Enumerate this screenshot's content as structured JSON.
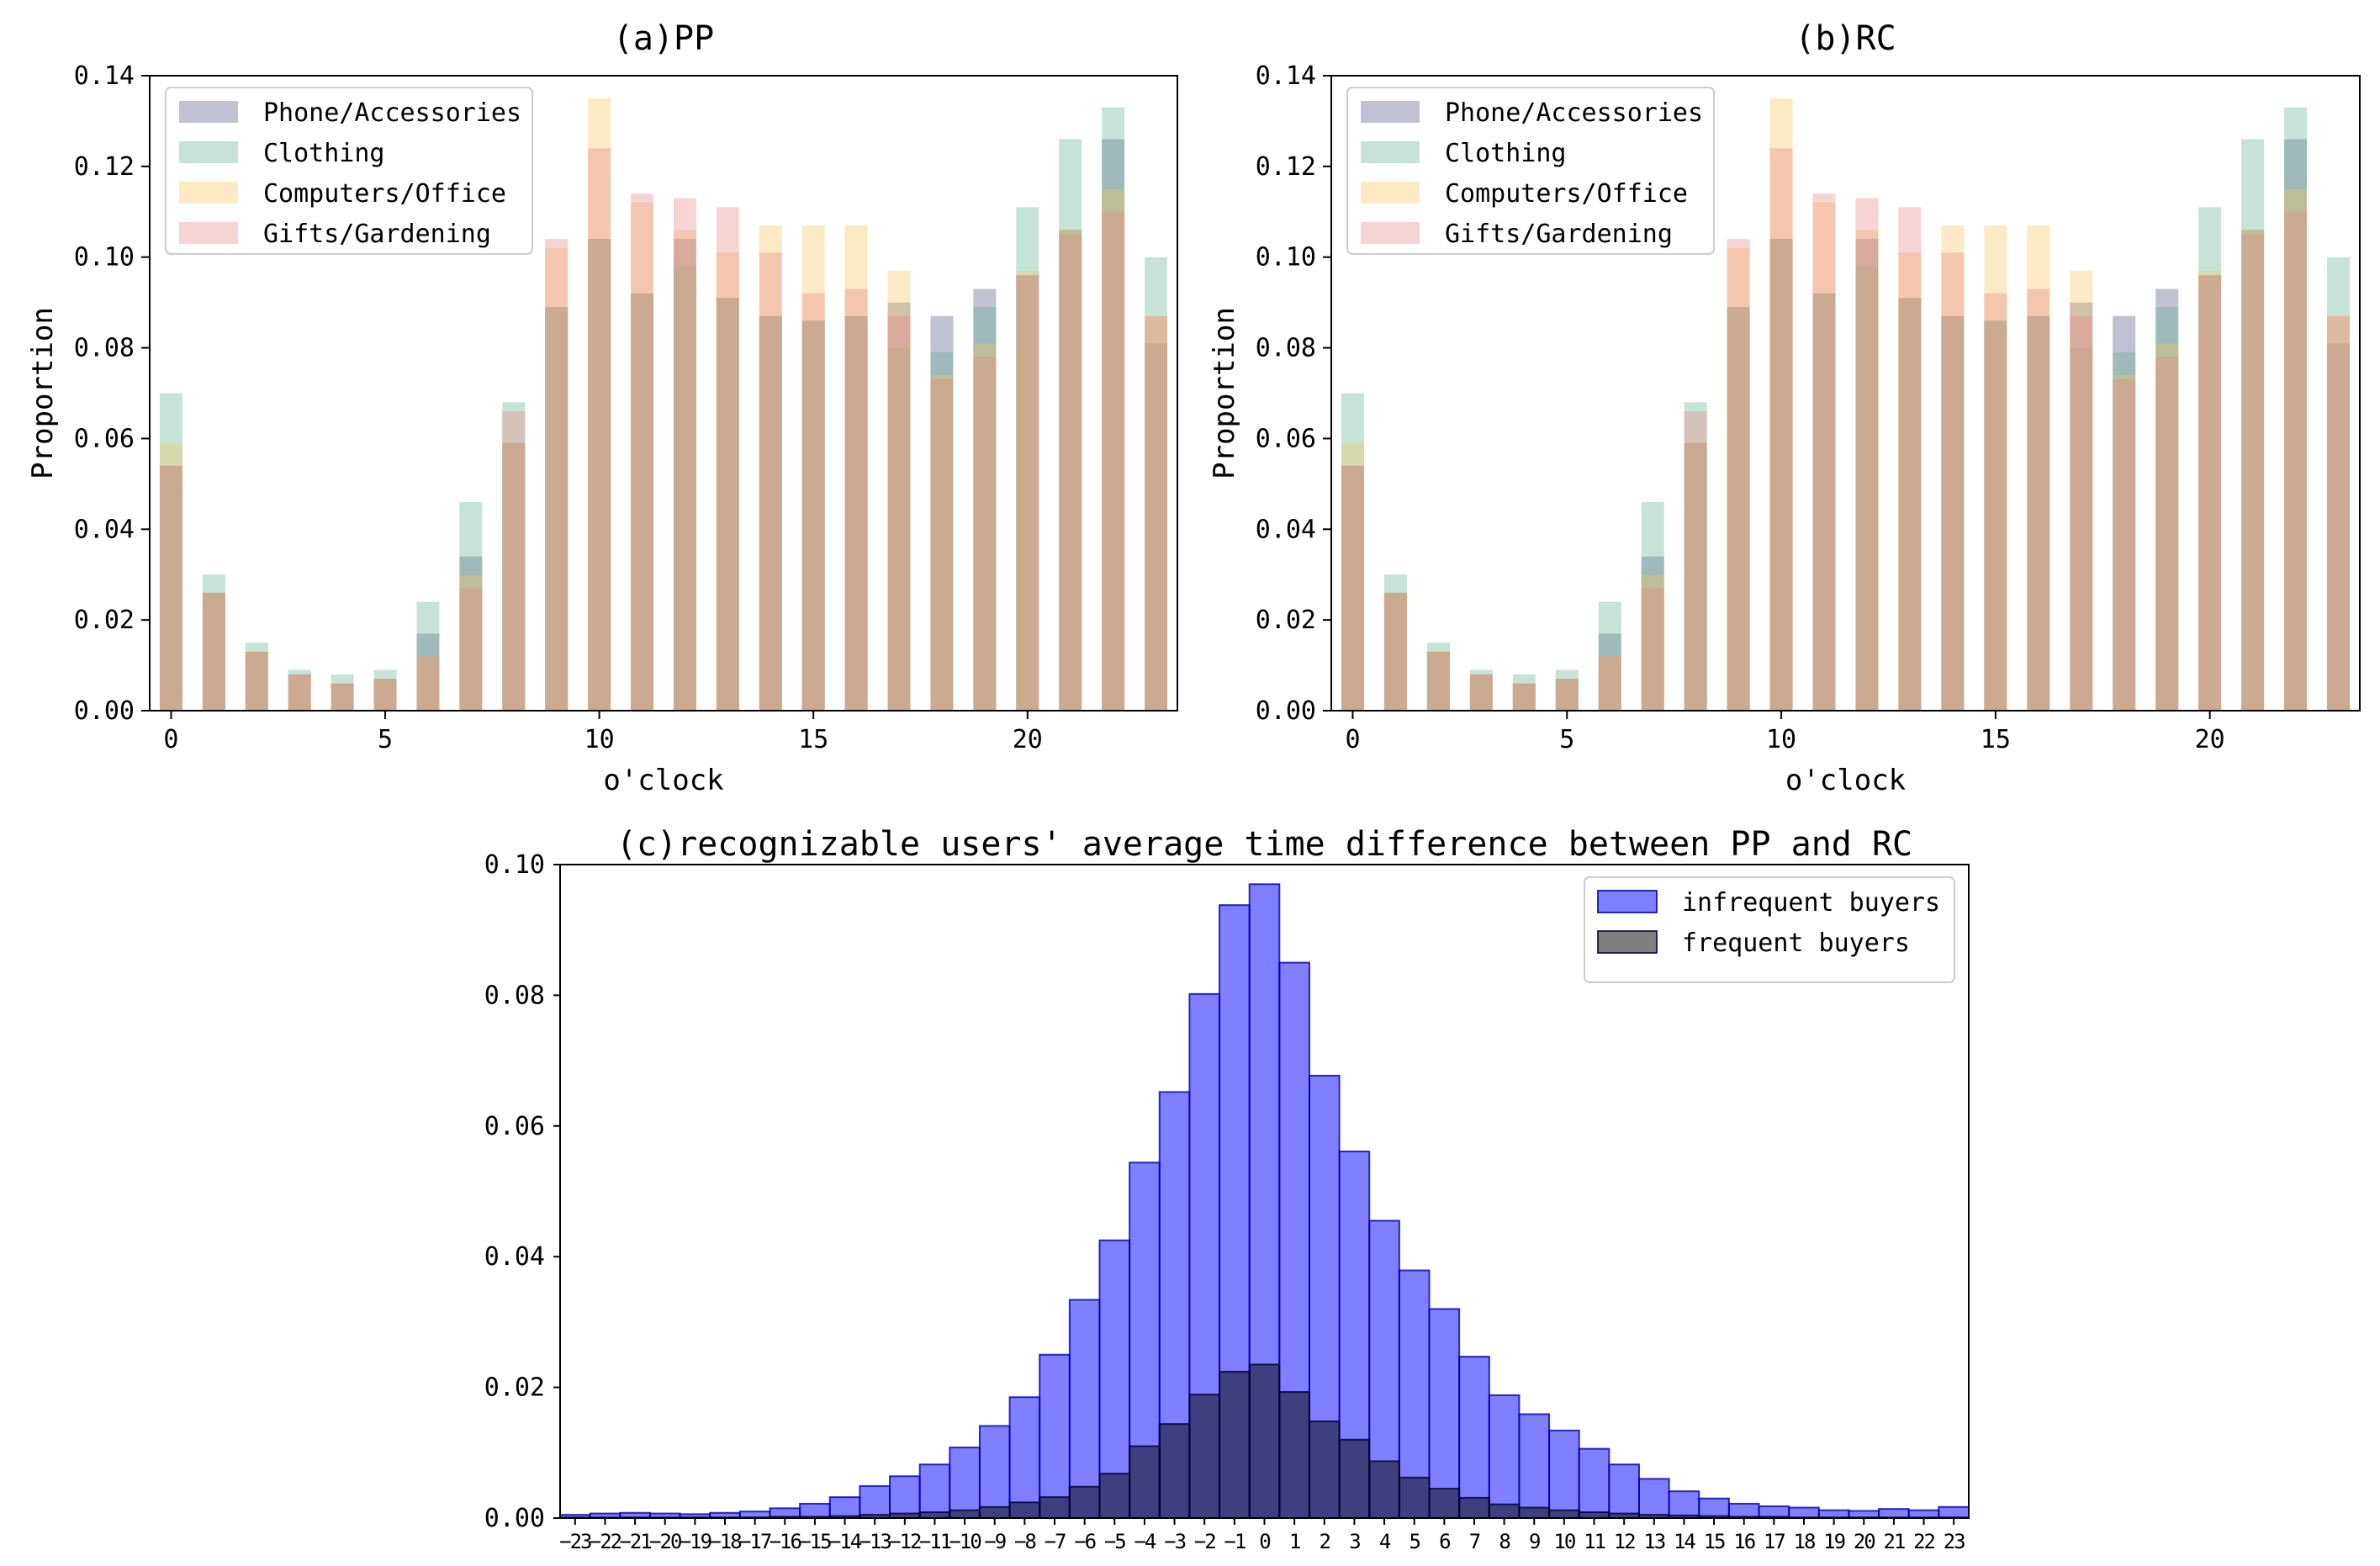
{
  "chart_data": [
    {
      "id": "a",
      "type": "bar",
      "title": "(a)PP",
      "xlabel": "o'clock",
      "ylabel": "Proportion",
      "xlim": [
        -0.5,
        23.5
      ],
      "ylim": [
        0,
        0.14
      ],
      "xticks": [
        0,
        5,
        10,
        15,
        20
      ],
      "yticks": [
        "0.00",
        "0.02",
        "0.04",
        "0.06",
        "0.08",
        "0.10",
        "0.12",
        "0.14"
      ],
      "legend_position": "top-left",
      "x": [
        0,
        1,
        2,
        3,
        4,
        5,
        6,
        7,
        8,
        9,
        10,
        11,
        12,
        13,
        14,
        15,
        16,
        17,
        18,
        19,
        20,
        21,
        22,
        23
      ],
      "series": [
        {
          "name": "Phone/Accessories",
          "color": "#4b4d7e",
          "values": [
            0.054,
            0.026,
            0.013,
            0.008,
            0.006,
            0.007,
            0.017,
            0.034,
            0.059,
            0.089,
            0.104,
            0.092,
            0.104,
            0.091,
            0.087,
            0.086,
            0.087,
            0.09,
            0.087,
            0.093,
            0.096,
            0.106,
            0.126,
            0.081
          ]
        },
        {
          "name": "Clothing",
          "color": "#5faf8e",
          "values": [
            0.07,
            0.03,
            0.015,
            0.009,
            0.008,
            0.009,
            0.024,
            0.046,
            0.068,
            0.089,
            0.104,
            0.092,
            0.098,
            0.091,
            0.087,
            0.086,
            0.087,
            0.08,
            0.079,
            0.089,
            0.111,
            0.126,
            0.133,
            0.1
          ]
        },
        {
          "name": "Computers/Office",
          "color": "#f6c35a",
          "values": [
            0.059,
            0.026,
            0.013,
            0.008,
            0.006,
            0.007,
            0.012,
            0.03,
            0.059,
            0.102,
            0.135,
            0.112,
            0.106,
            0.101,
            0.107,
            0.107,
            0.107,
            0.097,
            0.074,
            0.081,
            0.097,
            0.106,
            0.115,
            0.087
          ]
        },
        {
          "name": "Gifts/Gardening",
          "color": "#e88585",
          "values": [
            0.054,
            0.026,
            0.013,
            0.008,
            0.006,
            0.007,
            0.012,
            0.027,
            0.066,
            0.104,
            0.124,
            0.114,
            0.113,
            0.111,
            0.101,
            0.092,
            0.093,
            0.087,
            0.073,
            0.078,
            0.096,
            0.105,
            0.11,
            0.087
          ]
        }
      ]
    },
    {
      "id": "b",
      "type": "bar",
      "title": "(b)RC",
      "xlabel": "o'clock",
      "ylabel": "Proportion",
      "xlim": [
        -0.5,
        23.5
      ],
      "ylim": [
        0,
        0.14
      ],
      "xticks": [
        0,
        5,
        10,
        15,
        20
      ],
      "yticks": [
        "0.00",
        "0.02",
        "0.04",
        "0.06",
        "0.08",
        "0.10",
        "0.12",
        "0.14"
      ],
      "legend_position": "top-left",
      "x": [
        0,
        1,
        2,
        3,
        4,
        5,
        6,
        7,
        8,
        9,
        10,
        11,
        12,
        13,
        14,
        15,
        16,
        17,
        18,
        19,
        20,
        21,
        22,
        23
      ],
      "series": [
        {
          "name": "Phone/Accessories",
          "color": "#4b4d7e",
          "values": [
            0.054,
            0.026,
            0.013,
            0.008,
            0.006,
            0.007,
            0.017,
            0.034,
            0.059,
            0.089,
            0.104,
            0.092,
            0.104,
            0.091,
            0.087,
            0.086,
            0.087,
            0.09,
            0.087,
            0.093,
            0.096,
            0.106,
            0.126,
            0.081
          ]
        },
        {
          "name": "Clothing",
          "color": "#5faf8e",
          "values": [
            0.07,
            0.03,
            0.015,
            0.009,
            0.008,
            0.009,
            0.024,
            0.046,
            0.068,
            0.089,
            0.104,
            0.092,
            0.098,
            0.091,
            0.087,
            0.086,
            0.087,
            0.08,
            0.079,
            0.089,
            0.111,
            0.126,
            0.133,
            0.1
          ]
        },
        {
          "name": "Computers/Office",
          "color": "#f6c35a",
          "values": [
            0.059,
            0.026,
            0.013,
            0.008,
            0.006,
            0.007,
            0.012,
            0.03,
            0.059,
            0.102,
            0.135,
            0.112,
            0.106,
            0.101,
            0.107,
            0.107,
            0.107,
            0.097,
            0.074,
            0.081,
            0.097,
            0.106,
            0.115,
            0.087
          ]
        },
        {
          "name": "Gifts/Gardening",
          "color": "#e88585",
          "values": [
            0.054,
            0.026,
            0.013,
            0.008,
            0.006,
            0.007,
            0.012,
            0.027,
            0.066,
            0.104,
            0.124,
            0.114,
            0.113,
            0.111,
            0.101,
            0.092,
            0.093,
            0.087,
            0.073,
            0.078,
            0.096,
            0.105,
            0.11,
            0.087
          ]
        }
      ]
    },
    {
      "id": "c",
      "type": "bar",
      "title": "(c)recognizable users' average time difference between PP and RC",
      "xlabel": "",
      "ylabel": "",
      "xlim": [
        -23.5,
        23.5
      ],
      "ylim": [
        0,
        0.1
      ],
      "xticks": [
        -23,
        -22,
        -21,
        -20,
        -19,
        -18,
        -17,
        -16,
        -15,
        -14,
        -13,
        -12,
        -11,
        -10,
        -9,
        -8,
        -7,
        -6,
        -5,
        -4,
        -3,
        -2,
        -1,
        0,
        1,
        2,
        3,
        4,
        5,
        6,
        7,
        8,
        9,
        10,
        11,
        12,
        13,
        14,
        15,
        16,
        17,
        18,
        19,
        20,
        21,
        22,
        23
      ],
      "yticks": [
        "0.00",
        "0.02",
        "0.04",
        "0.06",
        "0.08",
        "0.10"
      ],
      "legend_position": "top-right",
      "x": [
        -23,
        -22,
        -21,
        -20,
        -19,
        -18,
        -17,
        -16,
        -15,
        -14,
        -13,
        -12,
        -11,
        -10,
        -9,
        -8,
        -7,
        -6,
        -5,
        -4,
        -3,
        -2,
        -1,
        0,
        1,
        2,
        3,
        4,
        5,
        6,
        7,
        8,
        9,
        10,
        11,
        12,
        13,
        14,
        15,
        16,
        17,
        18,
        19,
        20,
        21,
        22,
        23
      ],
      "series": [
        {
          "name": "infrequent buyers",
          "color": "#0000ff",
          "alpha": 0.5,
          "values": [
            0.0005,
            0.0007,
            0.0008,
            0.0007,
            0.0006,
            0.0008,
            0.001,
            0.0015,
            0.0022,
            0.0032,
            0.0049,
            0.0064,
            0.0082,
            0.0108,
            0.0141,
            0.0185,
            0.025,
            0.0334,
            0.0425,
            0.0544,
            0.0652,
            0.0802,
            0.0938,
            0.097,
            0.085,
            0.0677,
            0.0561,
            0.0455,
            0.0379,
            0.032,
            0.0247,
            0.0188,
            0.0159,
            0.0134,
            0.0106,
            0.0082,
            0.006,
            0.0041,
            0.003,
            0.0022,
            0.0018,
            0.0016,
            0.0012,
            0.0011,
            0.0014,
            0.0012,
            0.0017
          ]
        },
        {
          "name": "frequent buyers",
          "color": "#000000",
          "alpha": 0.5,
          "values": [
            0.0001,
            0.0001,
            0.0001,
            0.0001,
            0.0001,
            0.0001,
            0.0001,
            0.0002,
            0.0002,
            0.0003,
            0.0005,
            0.0007,
            0.0009,
            0.0012,
            0.0017,
            0.0024,
            0.0032,
            0.0048,
            0.0068,
            0.011,
            0.0144,
            0.0189,
            0.0224,
            0.0235,
            0.0193,
            0.0148,
            0.012,
            0.0087,
            0.0062,
            0.0045,
            0.0031,
            0.0021,
            0.0016,
            0.0012,
            0.0009,
            0.0007,
            0.0005,
            0.0004,
            0.0003,
            0.0002,
            0.0002,
            0.0001,
            0.0001,
            0.0001,
            0.0001,
            0.0001,
            0.0001
          ]
        }
      ]
    }
  ]
}
